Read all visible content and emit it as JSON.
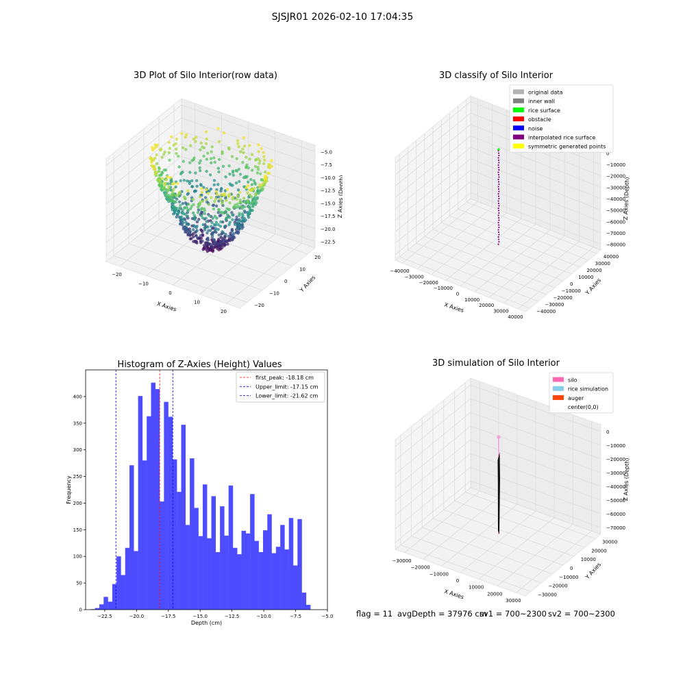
{
  "suptitle": "SJSJR01 2026-02-10 17:04:35",
  "panel1": {
    "title": "3D Plot of Silo Interior(row data)",
    "xlabel": "X Axies",
    "ylabel": "Y Axies",
    "zlabel": "Z Axies (Depth)",
    "xticks": [
      "−20",
      "−10",
      "0",
      "10",
      "20"
    ],
    "yticks": [
      "−20",
      "−10",
      "0",
      "10",
      "20"
    ],
    "zticks": [
      "−5.0",
      "−7.5",
      "−10.0",
      "−12.5",
      "−15.0",
      "−17.5",
      "−20.0",
      "−22.5"
    ],
    "colormap": [
      "#440154",
      "#3b528b",
      "#21918c",
      "#5ec962",
      "#fde725"
    ]
  },
  "panel2": {
    "title": "3D classify of Silo Interior",
    "xlabel": "X Axies",
    "ylabel": "Y Axies",
    "zlabel": "Z Axies (Depth)",
    "xticks": [
      "−40000",
      "−30000",
      "−20000",
      "−10000",
      "0",
      "10000",
      "20000",
      "30000",
      "40000"
    ],
    "yticks": [
      "−40000",
      "−30000",
      "−20000",
      "−10000",
      "0",
      "10000",
      "20000",
      "30000",
      "40000"
    ],
    "zticks": [
      "0",
      "−10000",
      "−20000",
      "−30000",
      "−40000",
      "−50000",
      "−60000",
      "−70000",
      "−80000"
    ],
    "legend": [
      {
        "label": "original data",
        "color": "#b3b3b3"
      },
      {
        "label": "inner wall",
        "color": "#808080"
      },
      {
        "label": "rice surface",
        "color": "#00ff00"
      },
      {
        "label": "obstacle",
        "color": "#ff0000"
      },
      {
        "label": "noise",
        "color": "#0000ff"
      },
      {
        "label": "interpolated rice surface",
        "color": "#800080"
      },
      {
        "label": "symmetric generated points",
        "color": "#ffff00"
      }
    ]
  },
  "panel4": {
    "title": "3D simulation of Silo Interior",
    "xlabel": "X Axies",
    "ylabel": "Y Axies",
    "zlabel": "Z Axies (Depth)",
    "xticks": [
      "−30000",
      "−20000",
      "−10000",
      "0",
      "10000",
      "20000",
      "30000"
    ],
    "yticks": [
      "−30000",
      "−20000",
      "−10000",
      "0",
      "10000",
      "20000",
      "30000"
    ],
    "zticks": [
      "0",
      "−10000",
      "−20000",
      "−30000",
      "−40000",
      "−50000",
      "−60000",
      "−70000"
    ],
    "legend": [
      {
        "label": "silo",
        "color": "#ff69b4"
      },
      {
        "label": "rice simulation",
        "color": "#87ceeb"
      },
      {
        "label": "auger",
        "color": "#ff4500"
      },
      {
        "label": "center(0,0)",
        "color": "#ffffff"
      }
    ]
  },
  "info": {
    "flag": "flag = 11",
    "avg": "avgDepth = 37976 cm",
    "sv1": "sv1 = 700~2300",
    "sv2": "sv2 = 700~2300"
  },
  "chart_data": {
    "type": "bar",
    "title": "Histogram of Z-Axies (Height) Values",
    "xlabel": "Depth (cm)",
    "ylabel": "Frequency",
    "xlim": [
      -24,
      -5
    ],
    "ylim": [
      0,
      450
    ],
    "xticks": [
      "−22.5",
      "−20.0",
      "−17.5",
      "−15.0",
      "−12.5",
      "−10.0",
      "−7.5",
      "−5.0"
    ],
    "yticks": [
      "0",
      "50",
      "100",
      "150",
      "200",
      "250",
      "300",
      "350",
      "400"
    ],
    "bin_start": -23.6,
    "bin_width": 0.3385,
    "values": [
      1,
      3,
      10,
      24,
      15,
      48,
      100,
      65,
      116,
      271,
      110,
      401,
      280,
      363,
      426,
      414,
      203,
      390,
      362,
      282,
      221,
      347,
      159,
      284,
      191,
      138,
      235,
      134,
      213,
      108,
      194,
      139,
      233,
      116,
      104,
      148,
      143,
      217,
      129,
      108,
      149,
      179,
      106,
      118,
      159,
      113,
      172,
      83,
      170,
      32,
      9
    ],
    "bar_color": "#4d4dff",
    "vlines": [
      {
        "label": "first_peak: -18.18 cm",
        "x": -18.18,
        "color": "#ff0000"
      },
      {
        "label": "Upper_limit: -17.15 cm",
        "x": -17.15,
        "color": "#0000ff"
      },
      {
        "label": "Lower_limit: -21.62 cm",
        "x": -21.62,
        "color": "#0000ff"
      }
    ],
    "legend_position": "top-right"
  }
}
